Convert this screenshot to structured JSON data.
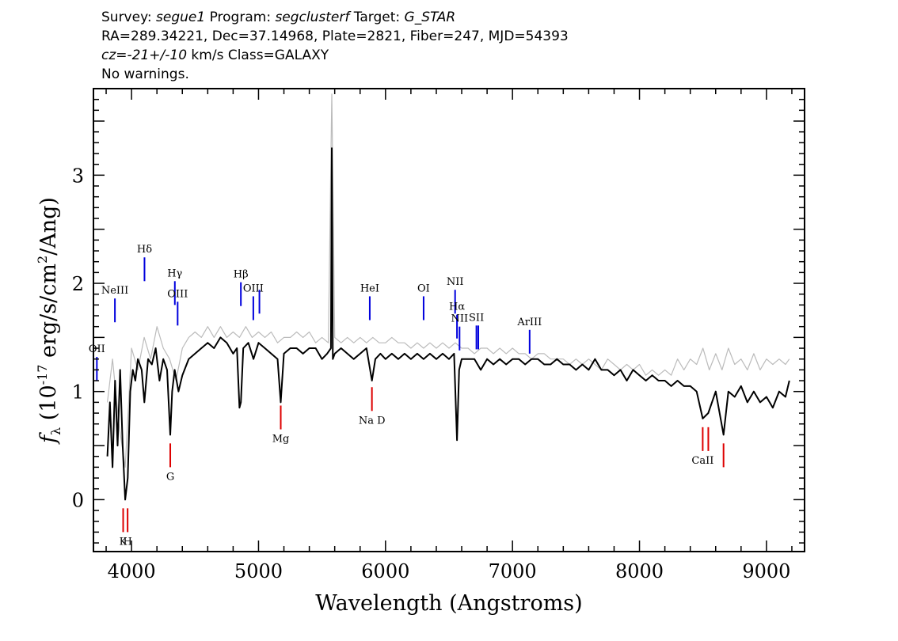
{
  "header": {
    "line1": {
      "survey_label": "Survey: ",
      "survey": "segue1",
      "program_label": " Program: ",
      "program": "segclusterf",
      "target_label": " Target: ",
      "target": "G_STAR"
    },
    "line2": "RA=289.34221, Dec=37.14968, Plate=2821, Fiber=247, MJD=54393",
    "line3": {
      "cz": "cz=-21+/-10",
      "rest": " km/s Class=GALAXY"
    },
    "line4": "No warnings."
  },
  "chart_data": {
    "type": "line",
    "xlabel": "Wavelength (Angstroms)",
    "ylabel": "f_λ (10^-17 erg/s/cm^2/Ang)",
    "xlim": [
      3700,
      9300
    ],
    "ylim": [
      -0.48,
      3.8
    ],
    "x_ticks": [
      4000,
      5000,
      6000,
      7000,
      8000,
      9000
    ],
    "y_ticks": [
      0,
      1,
      2,
      3
    ],
    "series": [
      {
        "color": "#000000",
        "x": [
          3810,
          3830,
          3850,
          3870,
          3890,
          3910,
          3930,
          3950,
          3970,
          3990,
          4010,
          4030,
          4050,
          4080,
          4101,
          4130,
          4160,
          4190,
          4220,
          4250,
          4280,
          4305,
          4320,
          4340,
          4370,
          4400,
          4450,
          4500,
          4550,
          4600,
          4650,
          4700,
          4750,
          4800,
          4830,
          4850,
          4861,
          4880,
          4920,
          4960,
          5000,
          5050,
          5100,
          5150,
          5175,
          5200,
          5250,
          5300,
          5350,
          5400,
          5450,
          5500,
          5540,
          5570,
          5577,
          5585,
          5600,
          5650,
          5700,
          5750,
          5800,
          5850,
          5893,
          5920,
          5960,
          6000,
          6050,
          6100,
          6150,
          6200,
          6250,
          6300,
          6350,
          6400,
          6450,
          6500,
          6540,
          6563,
          6580,
          6600,
          6650,
          6700,
          6750,
          6800,
          6850,
          6900,
          6950,
          7000,
          7050,
          7100,
          7150,
          7200,
          7250,
          7300,
          7350,
          7400,
          7450,
          7500,
          7550,
          7600,
          7650,
          7700,
          7750,
          7800,
          7850,
          7900,
          7950,
          8000,
          8050,
          8100,
          8150,
          8200,
          8250,
          8300,
          8350,
          8400,
          8450,
          8498,
          8542,
          8600,
          8662,
          8700,
          8750,
          8800,
          8850,
          8900,
          8950,
          9000,
          9050,
          9100,
          9150,
          9180
        ],
        "y": [
          0.4,
          0.9,
          0.3,
          1.1,
          0.5,
          1.2,
          0.5,
          0.0,
          0.2,
          1.0,
          1.2,
          1.1,
          1.3,
          1.2,
          0.9,
          1.3,
          1.25,
          1.4,
          1.1,
          1.3,
          1.2,
          0.6,
          1.0,
          1.2,
          1.0,
          1.15,
          1.3,
          1.35,
          1.4,
          1.45,
          1.4,
          1.5,
          1.45,
          1.35,
          1.4,
          0.85,
          0.9,
          1.4,
          1.45,
          1.3,
          1.45,
          1.4,
          1.35,
          1.3,
          0.9,
          1.35,
          1.4,
          1.4,
          1.35,
          1.4,
          1.4,
          1.3,
          1.35,
          1.4,
          3.25,
          1.3,
          1.35,
          1.4,
          1.35,
          1.3,
          1.35,
          1.4,
          1.1,
          1.3,
          1.35,
          1.3,
          1.35,
          1.3,
          1.35,
          1.3,
          1.35,
          1.3,
          1.35,
          1.3,
          1.35,
          1.3,
          1.35,
          0.55,
          1.2,
          1.3,
          1.3,
          1.3,
          1.2,
          1.3,
          1.25,
          1.3,
          1.25,
          1.3,
          1.3,
          1.25,
          1.3,
          1.3,
          1.25,
          1.25,
          1.3,
          1.25,
          1.25,
          1.2,
          1.25,
          1.2,
          1.3,
          1.2,
          1.2,
          1.15,
          1.2,
          1.1,
          1.2,
          1.15,
          1.1,
          1.15,
          1.1,
          1.1,
          1.05,
          1.1,
          1.05,
          1.05,
          1.0,
          0.75,
          0.8,
          1.0,
          0.6,
          1.0,
          0.95,
          1.05,
          0.9,
          1.0,
          0.9,
          0.95,
          0.85,
          1.0,
          0.95,
          1.1
        ]
      },
      {
        "color": "#bbbbbb",
        "x": [
          3810,
          3850,
          3900,
          3950,
          4000,
          4050,
          4100,
          4150,
          4200,
          4250,
          4300,
          4350,
          4400,
          4450,
          4500,
          4550,
          4600,
          4650,
          4700,
          4750,
          4800,
          4850,
          4900,
          4950,
          5000,
          5050,
          5100,
          5150,
          5200,
          5250,
          5300,
          5350,
          5400,
          5450,
          5500,
          5550,
          5577,
          5600,
          5650,
          5700,
          5750,
          5800,
          5850,
          5900,
          5950,
          6000,
          6050,
          6100,
          6150,
          6200,
          6250,
          6300,
          6350,
          6400,
          6450,
          6500,
          6550,
          6600,
          6650,
          6700,
          6750,
          6800,
          6850,
          6900,
          6950,
          7000,
          7050,
          7100,
          7150,
          7200,
          7250,
          7300,
          7350,
          7400,
          7450,
          7500,
          7550,
          7600,
          7650,
          7700,
          7750,
          7800,
          7850,
          7900,
          7950,
          8000,
          8050,
          8100,
          8150,
          8200,
          8250,
          8300,
          8350,
          8400,
          8450,
          8500,
          8550,
          8600,
          8650,
          8700,
          8750,
          8800,
          8850,
          8900,
          8950,
          9000,
          9050,
          9100,
          9150,
          9180
        ],
        "y": [
          0.9,
          1.3,
          0.7,
          0.3,
          1.4,
          1.2,
          1.5,
          1.3,
          1.6,
          1.4,
          1.3,
          1.1,
          1.4,
          1.5,
          1.55,
          1.5,
          1.6,
          1.5,
          1.6,
          1.5,
          1.55,
          1.5,
          1.6,
          1.5,
          1.55,
          1.5,
          1.55,
          1.45,
          1.5,
          1.5,
          1.55,
          1.5,
          1.55,
          1.45,
          1.5,
          1.45,
          3.75,
          1.5,
          1.45,
          1.5,
          1.45,
          1.5,
          1.45,
          1.5,
          1.45,
          1.45,
          1.5,
          1.45,
          1.45,
          1.4,
          1.45,
          1.4,
          1.45,
          1.4,
          1.45,
          1.4,
          1.45,
          1.4,
          1.4,
          1.35,
          1.4,
          1.4,
          1.35,
          1.4,
          1.35,
          1.4,
          1.35,
          1.35,
          1.3,
          1.35,
          1.35,
          1.3,
          1.3,
          1.3,
          1.25,
          1.3,
          1.25,
          1.3,
          1.25,
          1.2,
          1.3,
          1.25,
          1.2,
          1.25,
          1.2,
          1.25,
          1.15,
          1.2,
          1.15,
          1.2,
          1.15,
          1.3,
          1.2,
          1.3,
          1.25,
          1.4,
          1.2,
          1.35,
          1.2,
          1.4,
          1.25,
          1.3,
          1.2,
          1.35,
          1.2,
          1.3,
          1.25,
          1.3,
          1.25,
          1.3
        ]
      }
    ],
    "emission_lines": [
      {
        "label": "OII",
        "x": 3727,
        "y0": 1.1,
        "y1": 1.32
      },
      {
        "label": "NeIII",
        "x": 3869,
        "y0": 1.64,
        "y1": 1.86
      },
      {
        "label": "Hδ",
        "x": 4102,
        "y0": 2.02,
        "y1": 2.24
      },
      {
        "label": "Hγ",
        "x": 4341,
        "y0": 1.8,
        "y1": 2.02
      },
      {
        "label": "OIII",
        "x": 4363,
        "y0": 1.61,
        "y1": 1.83
      },
      {
        "label": "Hβ",
        "x": 4861,
        "y0": 1.79,
        "y1": 2.01
      },
      {
        "label": "OIII",
        "x": 4959,
        "y0": 1.66,
        "y1": 1.88
      },
      {
        "label": "",
        "x": 5007,
        "y0": 1.72,
        "y1": 1.94
      },
      {
        "label": "HeI",
        "x": 5876,
        "y0": 1.66,
        "y1": 1.88
      },
      {
        "label": "OI",
        "x": 6300,
        "y0": 1.66,
        "y1": 1.88
      },
      {
        "label": "NII",
        "x": 6548,
        "y0": 1.72,
        "y1": 1.94
      },
      {
        "label": "Hα",
        "x": 6563,
        "y0": 1.49,
        "y1": 1.71
      },
      {
        "label": "NII",
        "x": 6583,
        "y0": 1.38,
        "y1": 1.6
      },
      {
        "label": "SII",
        "x": 6716,
        "y0": 1.39,
        "y1": 1.61
      },
      {
        "label": "",
        "x": 6731,
        "y0": 1.39,
        "y1": 1.61
      },
      {
        "label": "ArIII",
        "x": 7135,
        "y0": 1.35,
        "y1": 1.57
      }
    ],
    "absorption_lines": [
      {
        "label": "K",
        "x": 3934,
        "y0": -0.3,
        "y1": -0.08
      },
      {
        "label": "H",
        "x": 3969,
        "y0": -0.3,
        "y1": -0.08
      },
      {
        "label": "G",
        "x": 4305,
        "y0": 0.3,
        "y1": 0.52
      },
      {
        "label": "Mg",
        "x": 5175,
        "y0": 0.65,
        "y1": 0.87
      },
      {
        "label": "Na D",
        "x": 5893,
        "y0": 0.82,
        "y1": 1.04
      },
      {
        "label": "CaII",
        "x": 8498,
        "y0": 0.45,
        "y1": 0.67
      },
      {
        "label": "",
        "x": 8542,
        "y0": 0.45,
        "y1": 0.67
      },
      {
        "label": "",
        "x": 8662,
        "y0": 0.3,
        "y1": 0.52
      }
    ],
    "colors": {
      "emission": "#0000dd",
      "absorption": "#dd0000",
      "label": "#000000"
    }
  }
}
